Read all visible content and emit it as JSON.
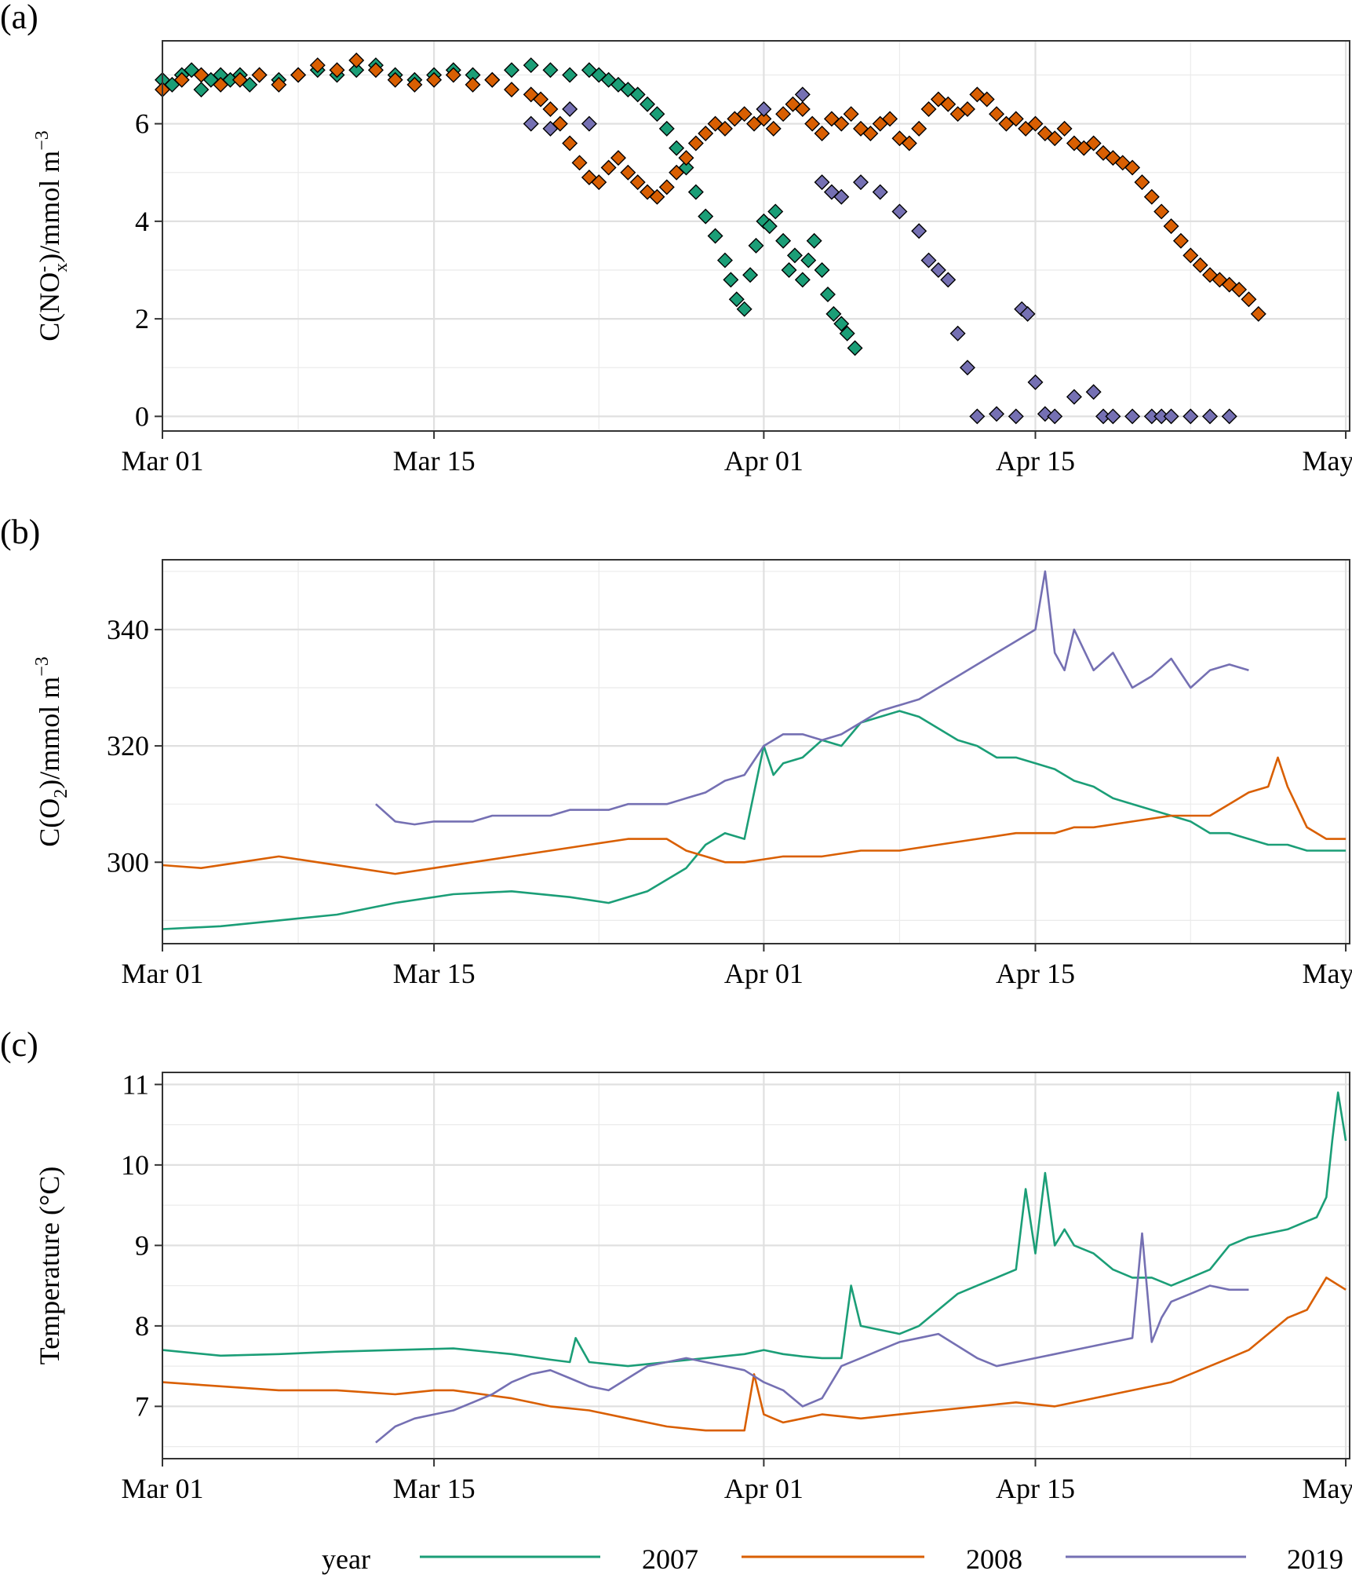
{
  "colors": {
    "2007": "#1b9e77",
    "2008": "#d95f02",
    "2019": "#7570b3"
  },
  "chart_data": [
    {
      "panel": "(a)",
      "type": "scatter",
      "ylabel": "C(NOₓ⁻)/mmol m⁻³",
      "ylabel_parts": {
        "pre": "C(NO",
        "sub": "x",
        "sup": "-",
        "post": ")/mmol m",
        "unit_sup": "−3"
      },
      "xlim": [
        0,
        61.2
      ],
      "ylim": [
        -0.3,
        7.7
      ],
      "x_ticks": [
        0,
        14,
        31,
        45,
        61
      ],
      "x_tick_labels": [
        "Mar 01",
        "Mar 15",
        "Apr 01",
        "Apr 15",
        "May 01"
      ],
      "y_ticks": [
        0,
        2,
        4,
        6
      ],
      "y_tick_labels": [
        "0",
        "2",
        "4",
        "6"
      ],
      "grid": true,
      "series": [
        {
          "name": "2007",
          "x": [
            0,
            0.5,
            1,
            1.5,
            2,
            2.5,
            3,
            3.5,
            4,
            4.5,
            5,
            6,
            7,
            8,
            9,
            10,
            11,
            12,
            13,
            14,
            15,
            16,
            17,
            18,
            19,
            20,
            21,
            22,
            22.5,
            23,
            23.5,
            24,
            24.5,
            25,
            25.5,
            26,
            26.5,
            27,
            27.5,
            28,
            28.5,
            29,
            29.3,
            29.6,
            30,
            30.3,
            30.6,
            31,
            31.3,
            31.6,
            32,
            32.3,
            32.6,
            33,
            33.3,
            33.6,
            34,
            34.3,
            34.6,
            35,
            35.3,
            35.7
          ],
          "y": [
            6.9,
            6.8,
            7.0,
            7.1,
            6.7,
            6.9,
            7.0,
            6.9,
            7.0,
            6.8,
            7.0,
            6.9,
            7.0,
            7.1,
            7.0,
            7.1,
            7.2,
            7.0,
            6.9,
            7.0,
            7.1,
            7.0,
            6.9,
            7.1,
            7.2,
            7.1,
            7.0,
            7.1,
            7.0,
            6.9,
            6.8,
            6.7,
            6.6,
            6.4,
            6.2,
            5.9,
            5.5,
            5.1,
            4.6,
            4.1,
            3.7,
            3.2,
            2.8,
            2.4,
            2.2,
            2.9,
            3.5,
            4.0,
            3.9,
            4.2,
            3.6,
            3.0,
            3.3,
            2.8,
            3.2,
            3.6,
            3.0,
            2.5,
            2.1,
            1.9,
            1.7,
            1.4
          ]
        },
        {
          "name": "2008",
          "x": [
            0,
            1,
            2,
            3,
            4,
            5,
            6,
            7,
            8,
            9,
            10,
            11,
            12,
            13,
            14,
            15,
            16,
            17,
            18,
            19,
            19.5,
            20,
            20.5,
            21,
            21.5,
            22,
            22.5,
            23,
            23.5,
            24,
            24.5,
            25,
            25.5,
            26,
            26.5,
            27,
            27.5,
            28,
            28.5,
            29,
            29.5,
            30,
            30.5,
            31,
            31.5,
            32,
            32.5,
            33,
            33.5,
            34,
            34.5,
            35,
            35.5,
            36,
            36.5,
            37,
            37.5,
            38,
            38.5,
            39,
            39.5,
            40,
            40.5,
            41,
            41.5,
            42,
            42.5,
            43,
            43.5,
            44,
            44.5,
            45,
            45.5,
            46,
            46.5,
            47,
            47.5,
            48,
            48.5,
            49,
            49.5,
            50,
            50.5,
            51,
            51.5,
            52,
            52.5,
            53,
            53.5,
            54,
            54.5,
            55,
            55.5,
            56,
            56.5
          ],
          "y": [
            6.7,
            6.9,
            7.0,
            6.8,
            6.9,
            7.0,
            6.8,
            7.0,
            7.2,
            7.1,
            7.3,
            7.1,
            6.9,
            6.8,
            6.9,
            7.0,
            6.8,
            6.9,
            6.7,
            6.6,
            6.5,
            6.3,
            6.0,
            5.6,
            5.2,
            4.9,
            4.8,
            5.1,
            5.3,
            5.0,
            4.8,
            4.6,
            4.5,
            4.7,
            5.0,
            5.3,
            5.6,
            5.8,
            6.0,
            5.9,
            6.1,
            6.2,
            6.0,
            6.1,
            5.9,
            6.2,
            6.4,
            6.3,
            6.0,
            5.8,
            6.1,
            6.0,
            6.2,
            5.9,
            5.8,
            6.0,
            6.1,
            5.7,
            5.6,
            5.9,
            6.3,
            6.5,
            6.4,
            6.2,
            6.3,
            6.6,
            6.5,
            6.2,
            6.0,
            6.1,
            5.9,
            6.0,
            5.8,
            5.7,
            5.9,
            5.6,
            5.5,
            5.6,
            5.4,
            5.3,
            5.2,
            5.1,
            4.8,
            4.5,
            4.2,
            3.9,
            3.6,
            3.3,
            3.1,
            2.9,
            2.8,
            2.7,
            2.6,
            2.4,
            2.1
          ]
        },
        {
          "name": "2019",
          "x": [
            19,
            20,
            21,
            22,
            31,
            33,
            34,
            34.5,
            35,
            36,
            37,
            38,
            39,
            39.5,
            40,
            40.5,
            41,
            41.5,
            42,
            43,
            44,
            44.3,
            44.6,
            45,
            45.5,
            46,
            47,
            48,
            48.5,
            49,
            50,
            51,
            51.5,
            52,
            53,
            54,
            55
          ],
          "y": [
            6.0,
            5.9,
            6.3,
            6.0,
            6.3,
            6.6,
            4.8,
            4.6,
            4.5,
            4.8,
            4.6,
            4.2,
            3.8,
            3.2,
            3.0,
            2.8,
            1.7,
            1.0,
            0.0,
            0.05,
            0.0,
            2.2,
            2.1,
            0.7,
            0.05,
            0.0,
            0.4,
            0.5,
            0.0,
            0.0,
            0.0,
            0.0,
            0.0,
            0.0,
            0.0,
            0.0,
            0.0
          ]
        }
      ]
    },
    {
      "panel": "(b)",
      "type": "line",
      "ylabel": "C(O₂)/mmol m⁻³",
      "ylabel_parts": {
        "pre": "C(O",
        "sub": "2",
        "sup": "",
        "post": ")/mmol m",
        "unit_sup": "−3"
      },
      "xlim": [
        0,
        61.2
      ],
      "ylim": [
        286,
        352
      ],
      "x_ticks": [
        0,
        14,
        31,
        45,
        61
      ],
      "x_tick_labels": [
        "Mar 01",
        "Mar 15",
        "Apr 01",
        "Apr 15",
        "May 01"
      ],
      "y_ticks": [
        300,
        320,
        340
      ],
      "y_tick_labels": [
        "300",
        "320",
        "340"
      ],
      "grid": true,
      "series": [
        {
          "name": "2007",
          "x": [
            0,
            3,
            6,
            9,
            12,
            15,
            18,
            21,
            23,
            25,
            27,
            28,
            29,
            30,
            31,
            31.5,
            32,
            33,
            34,
            35,
            36,
            37,
            38,
            39,
            40,
            41,
            42,
            43,
            44,
            45,
            46,
            47,
            48,
            49,
            50,
            51,
            52,
            53,
            54,
            55,
            56,
            57,
            58,
            59,
            60,
            61
          ],
          "y": [
            288.5,
            289,
            290,
            291,
            293,
            294.5,
            295,
            294,
            293,
            295,
            299,
            303,
            305,
            304,
            320,
            315,
            317,
            318,
            321,
            320,
            324,
            325,
            326,
            325,
            323,
            321,
            320,
            318,
            318,
            317,
            316,
            314,
            313,
            311,
            310,
            309,
            308,
            307,
            305,
            305,
            304,
            303,
            303,
            302,
            302,
            302
          ]
        },
        {
          "name": "2008",
          "x": [
            0,
            2,
            4,
            6,
            8,
            10,
            12,
            14,
            16,
            18,
            20,
            22,
            24,
            26,
            27,
            28,
            29,
            30,
            31,
            32,
            34,
            36,
            38,
            40,
            42,
            44,
            46,
            47,
            48,
            50,
            52,
            54,
            55,
            56,
            57,
            57.5,
            58,
            59,
            60,
            61
          ],
          "y": [
            299.5,
            299,
            300,
            301,
            300,
            299,
            298,
            299,
            300,
            301,
            302,
            303,
            304,
            304,
            302,
            301,
            300,
            300,
            300.5,
            301,
            301,
            302,
            302,
            303,
            304,
            305,
            305,
            306,
            306,
            307,
            308,
            308,
            310,
            312,
            313,
            318,
            313,
            306,
            304,
            304
          ]
        },
        {
          "name": "2019",
          "x": [
            11,
            12,
            13,
            14,
            15,
            16,
            17,
            18,
            19,
            20,
            21,
            22,
            23,
            24,
            25,
            26,
            27,
            28,
            29,
            30,
            31,
            32,
            33,
            34,
            35,
            36,
            37,
            38,
            39,
            40,
            41,
            42,
            43,
            44,
            45,
            45.5,
            46,
            46.5,
            47,
            48,
            49,
            50,
            51,
            52,
            53,
            54,
            55,
            56
          ],
          "y": [
            310,
            307,
            306.5,
            307,
            307,
            307,
            308,
            308,
            308,
            308,
            309,
            309,
            309,
            310,
            310,
            310,
            311,
            312,
            314,
            315,
            320,
            322,
            322,
            321,
            322,
            324,
            326,
            327,
            328,
            330,
            332,
            334,
            336,
            338,
            340,
            350,
            336,
            333,
            340,
            333,
            336,
            330,
            332,
            335,
            330,
            333,
            334,
            333
          ]
        }
      ]
    },
    {
      "panel": "(c)",
      "type": "line",
      "ylabel": "Temperature (°C)",
      "xlim": [
        0,
        61.2
      ],
      "ylim": [
        6.35,
        11.15
      ],
      "x_ticks": [
        0,
        14,
        31,
        45,
        61
      ],
      "x_tick_labels": [
        "Mar 01",
        "Mar 15",
        "Apr 01",
        "Apr 15",
        "May 01"
      ],
      "y_ticks": [
        7,
        8,
        9,
        10,
        11
      ],
      "y_tick_labels": [
        "7",
        "8",
        "9",
        "10",
        "11"
      ],
      "grid": true,
      "series": [
        {
          "name": "2007",
          "x": [
            0,
            3,
            6,
            9,
            12,
            15,
            18,
            20,
            21,
            21.3,
            22,
            24,
            26,
            28,
            30,
            31,
            32,
            33,
            34,
            35,
            35.5,
            36,
            37,
            38,
            39,
            40,
            41,
            42,
            43,
            44,
            44.5,
            45,
            45.5,
            46,
            46.5,
            47,
            48,
            49,
            50,
            51,
            52,
            53,
            54,
            55,
            56,
            57,
            58,
            59,
            59.5,
            60,
            60.3,
            60.6,
            61
          ],
          "y": [
            7.7,
            7.63,
            7.65,
            7.68,
            7.7,
            7.72,
            7.65,
            7.58,
            7.55,
            7.85,
            7.55,
            7.5,
            7.55,
            7.6,
            7.65,
            7.7,
            7.65,
            7.62,
            7.6,
            7.6,
            8.5,
            8.0,
            7.95,
            7.9,
            8.0,
            8.2,
            8.4,
            8.5,
            8.6,
            8.7,
            9.7,
            8.9,
            9.9,
            9.0,
            9.2,
            9.0,
            8.9,
            8.7,
            8.6,
            8.6,
            8.5,
            8.6,
            8.7,
            9.0,
            9.1,
            9.15,
            9.2,
            9.3,
            9.35,
            9.6,
            10.3,
            10.9,
            10.3
          ]
        },
        {
          "name": "2008",
          "x": [
            0,
            3,
            6,
            9,
            12,
            14,
            15,
            18,
            20,
            22,
            24,
            26,
            28,
            30,
            30.5,
            31,
            31.5,
            32,
            33,
            34,
            36,
            38,
            40,
            42,
            44,
            46,
            48,
            50,
            52,
            54,
            55,
            56,
            57,
            58,
            59,
            60,
            61
          ],
          "y": [
            7.3,
            7.25,
            7.2,
            7.2,
            7.15,
            7.2,
            7.2,
            7.1,
            7.0,
            6.95,
            6.85,
            6.75,
            6.7,
            6.7,
            7.4,
            6.9,
            6.85,
            6.8,
            6.85,
            6.9,
            6.85,
            6.9,
            6.95,
            7.0,
            7.05,
            7.0,
            7.1,
            7.2,
            7.3,
            7.5,
            7.6,
            7.7,
            7.9,
            8.1,
            8.2,
            8.6,
            8.45
          ]
        },
        {
          "name": "2019",
          "x": [
            11,
            12,
            13,
            14,
            15,
            16,
            17,
            18,
            19,
            20,
            21,
            22,
            23,
            24,
            25,
            26,
            27,
            28,
            29,
            30,
            31,
            32,
            33,
            34,
            35,
            36,
            37,
            38,
            39,
            40,
            41,
            42,
            43,
            44,
            45,
            46,
            47,
            48,
            49,
            50,
            50.5,
            51,
            51.5,
            52,
            53,
            54,
            55,
            56
          ],
          "y": [
            6.55,
            6.75,
            6.85,
            6.9,
            6.95,
            7.05,
            7.15,
            7.3,
            7.4,
            7.45,
            7.35,
            7.25,
            7.2,
            7.35,
            7.5,
            7.55,
            7.6,
            7.55,
            7.5,
            7.45,
            7.3,
            7.2,
            7.0,
            7.1,
            7.5,
            7.6,
            7.7,
            7.8,
            7.85,
            7.9,
            7.75,
            7.6,
            7.5,
            7.55,
            7.6,
            7.65,
            7.7,
            7.75,
            7.8,
            7.85,
            9.15,
            7.8,
            8.1,
            8.3,
            8.4,
            8.5,
            8.45,
            8.45
          ]
        }
      ]
    }
  ],
  "legend": {
    "title": "year",
    "position": "bottom",
    "entries": [
      "2007",
      "2008",
      "2019"
    ]
  }
}
